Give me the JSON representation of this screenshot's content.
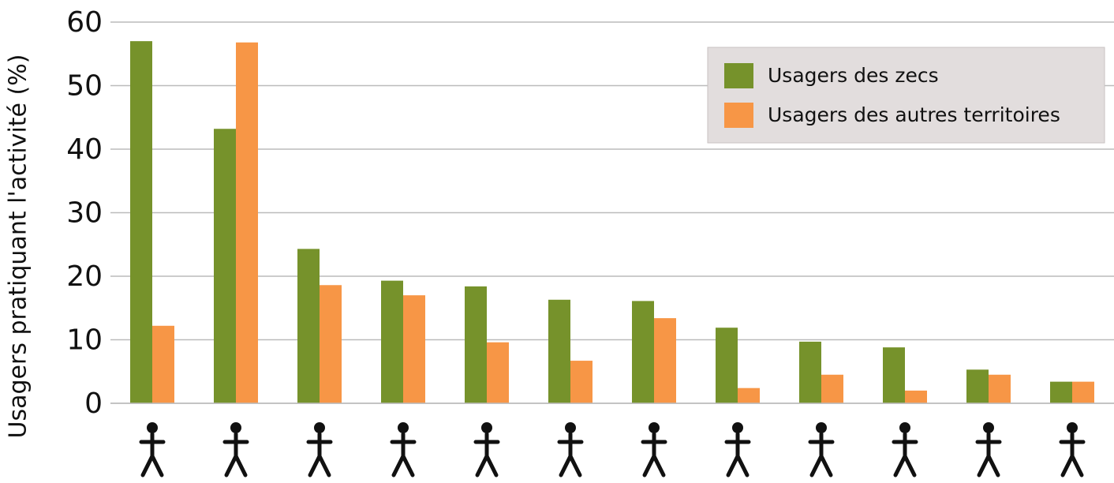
{
  "chart_data": {
    "type": "bar",
    "y_label": "Usagers pratiquant l'activité (%)",
    "categories": [
      null,
      null,
      null,
      null,
      null,
      null,
      null,
      null,
      null,
      null,
      null,
      null
    ],
    "series": [
      {
        "name": "Usagers des zecs",
        "color": "#76922b",
        "values": [
          57.0,
          43.2,
          24.3,
          19.3,
          18.4,
          16.3,
          16.1,
          11.9,
          9.7,
          8.8,
          5.3,
          3.4
        ]
      },
      {
        "name": "Usagers des autres territoires",
        "color": "#f79646",
        "values": [
          12.2,
          56.8,
          18.6,
          17.0,
          9.6,
          6.7,
          13.4,
          2.4,
          4.5,
          2.0,
          4.5,
          3.4
        ]
      }
    ],
    "ylim": [
      0,
      60
    ],
    "yticks": [
      0,
      10,
      20,
      30,
      40,
      50,
      60
    ],
    "grid": true,
    "legend": "upper right"
  }
}
